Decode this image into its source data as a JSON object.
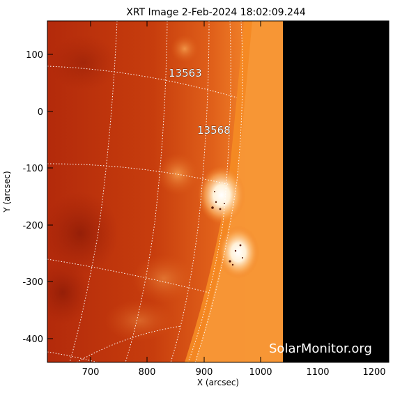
{
  "title": "XRT Image   2-Feb-2024 18:02:09.244",
  "xlabel": "X (arcsec)",
  "ylabel": "Y (arcsec)",
  "x_ticks": [
    "700",
    "800",
    "900",
    "1000",
    "1100",
    "1200"
  ],
  "y_ticks": [
    "100",
    "0",
    "-100",
    "-200",
    "-300",
    "-400"
  ],
  "active_regions": [
    {
      "number": "13563"
    },
    {
      "number": "13568"
    }
  ],
  "watermark": "SolarMonitor.org",
  "colors": {
    "disk_dark": "#b52a0a",
    "disk_mid": "#d8500e",
    "limb_bright": "#f48a1e",
    "corona": "#f58a22",
    "off_detector": "#000000",
    "grid": "#ffffff"
  },
  "image": {
    "x_range": [
      620,
      1230
    ],
    "y_range": [
      -440,
      158
    ],
    "x_unit": "arcsec",
    "y_unit": "arcsec",
    "data_edge_x": 1040
  }
}
